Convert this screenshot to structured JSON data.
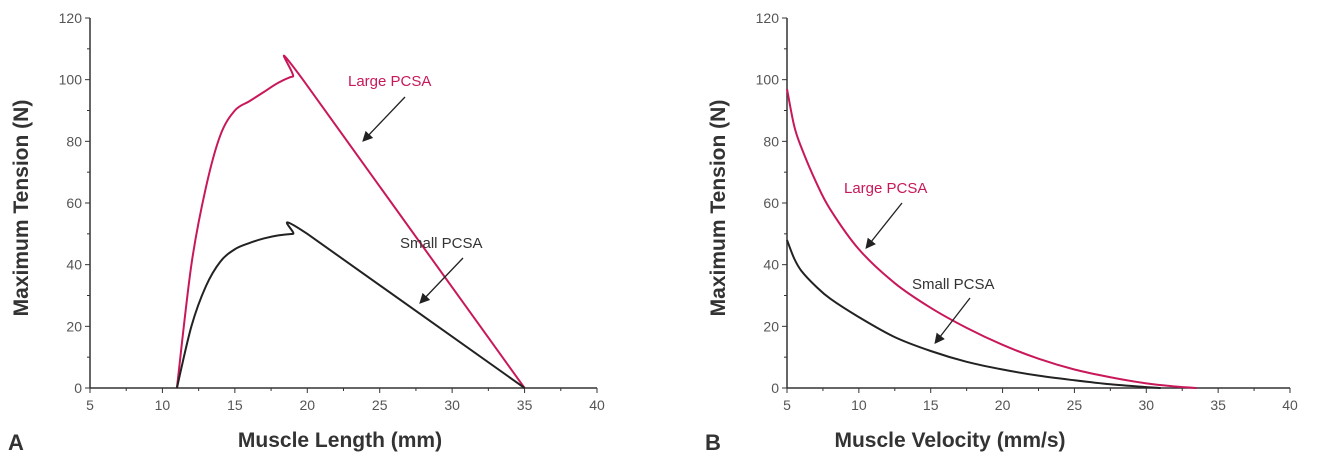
{
  "chart_data": [
    {
      "panel": "A",
      "type": "line",
      "xlabel": "Muscle Length (mm)",
      "ylabel": "Maximum Tension (N)",
      "xlim": [
        5,
        40
      ],
      "ylim": [
        0,
        120
      ],
      "xticks": [
        5,
        10,
        15,
        20,
        25,
        30,
        35,
        40
      ],
      "yticks": [
        0,
        20,
        40,
        60,
        80,
        100,
        120
      ],
      "grid": false,
      "series": [
        {
          "name": "Large PCSA",
          "color": "#c8185a",
          "x": [
            11,
            12,
            13,
            14,
            15,
            16,
            17,
            18,
            19,
            19.7,
            35
          ],
          "y": [
            0,
            40,
            65,
            82,
            90,
            93,
            96,
            99,
            101,
            100,
            0
          ]
        },
        {
          "name": "Small PCSA",
          "color": "#222222",
          "x": [
            11,
            12,
            13,
            14,
            15,
            16,
            17,
            18,
            19,
            20,
            35
          ],
          "y": [
            0,
            20,
            33,
            41,
            45,
            47,
            48.5,
            49.5,
            50,
            50,
            0
          ]
        }
      ]
    },
    {
      "panel": "B",
      "type": "line",
      "xlabel": "Muscle Velocity (mm/s)",
      "ylabel": "Maximum Tension (N)",
      "xlim": [
        5,
        40
      ],
      "ylim": [
        0,
        120
      ],
      "xticks": [
        5,
        10,
        15,
        20,
        25,
        30,
        35,
        40
      ],
      "yticks": [
        0,
        20,
        40,
        60,
        80,
        100,
        120
      ],
      "grid": false,
      "series": [
        {
          "name": "Large PCSA",
          "color": "#c8185a",
          "x": [
            5,
            5.5,
            6,
            7,
            8,
            10,
            12.5,
            15,
            17.5,
            20,
            22.5,
            25,
            27.5,
            30,
            32,
            33.5
          ],
          "y": [
            97,
            85,
            78,
            67,
            58,
            45,
            34,
            26,
            19.5,
            14,
            9.5,
            6,
            3.5,
            1.5,
            0.5,
            0
          ]
        },
        {
          "name": "Small PCSA",
          "color": "#222222",
          "x": [
            5,
            5.5,
            6,
            7,
            8,
            10,
            12.5,
            15,
            17.5,
            20,
            22.5,
            25,
            27.5,
            30,
            31
          ],
          "y": [
            48,
            42,
            38,
            33,
            29,
            23,
            16.5,
            12,
            8.5,
            6,
            4,
            2.5,
            1.2,
            0.3,
            0
          ]
        }
      ]
    }
  ]
}
